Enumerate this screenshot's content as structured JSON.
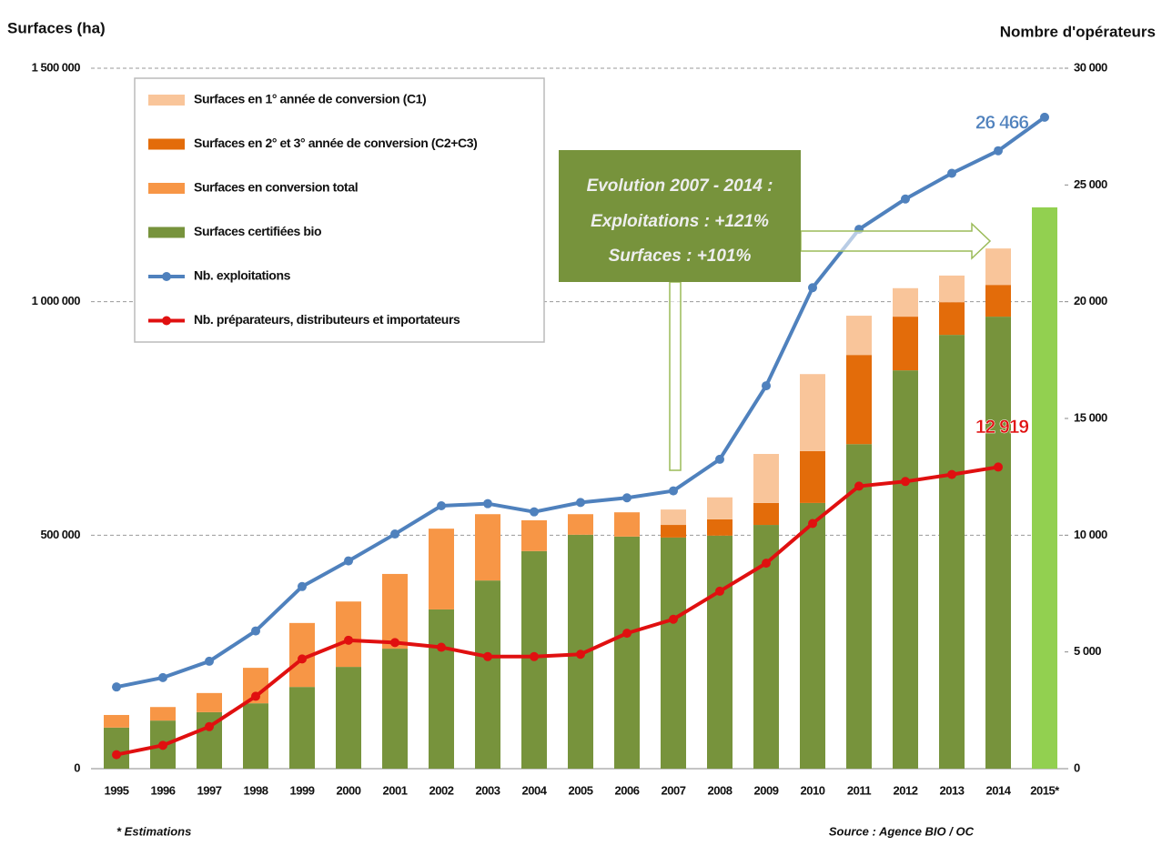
{
  "chart_data": {
    "type": "bar",
    "y_axis_label": "Surfaces (ha)",
    "y2_axis_label": "Nombre d'opérateurs",
    "annotation": [
      "Evolution 2007 - 2014 :",
      "Exploitations : +121%",
      "Surfaces : +101%"
    ],
    "footnote": "* Estimations",
    "source": "Source : Agence BIO / OC",
    "categories": [
      "1995",
      "1996",
      "1997",
      "1998",
      "1999",
      "2000",
      "2001",
      "2002",
      "2003",
      "2004",
      "2005",
      "2006",
      "2007",
      "2008",
      "2009",
      "2010",
      "2011",
      "2012",
      "2013",
      "2014",
      "2015*"
    ],
    "ylim": [
      0,
      1500000
    ],
    "yticks": [
      {
        "value": 0,
        "label": "0"
      },
      {
        "value": 500000,
        "label": "500 000"
      },
      {
        "value": 1000000,
        "label": "1 000 000"
      },
      {
        "value": 1500000,
        "label": "1 500 000"
      }
    ],
    "y2lim": [
      0,
      30000
    ],
    "y2ticks": [
      {
        "value": 0,
        "label": "0"
      },
      {
        "value": 5000,
        "label": "5 000"
      },
      {
        "value": 10000,
        "label": "10 000"
      },
      {
        "value": 15000,
        "label": "15 000"
      },
      {
        "value": 20000,
        "label": "20 000"
      },
      {
        "value": 25000,
        "label": "25 000"
      },
      {
        "value": 30000,
        "label": "30 000"
      }
    ],
    "grid": true,
    "series": [
      {
        "name": "Surfaces en 1° année de conversion (C1)",
        "color": "#f9c59a",
        "values": [
          null,
          null,
          null,
          null,
          null,
          null,
          null,
          null,
          null,
          null,
          null,
          null,
          33000,
          47000,
          105000,
          165000,
          84000,
          61000,
          57000,
          78000,
          null
        ]
      },
      {
        "name": "Surfaces en 2° et 3° année de conversion (C2+C3)",
        "color": "#e36c0a",
        "values": [
          null,
          null,
          null,
          null,
          null,
          null,
          null,
          null,
          null,
          null,
          null,
          null,
          27000,
          35000,
          47000,
          111000,
          191000,
          115000,
          70000,
          68000,
          null
        ]
      },
      {
        "name": "Surfaces en conversion total",
        "color": "#f79646",
        "values": [
          27000,
          29000,
          41000,
          76000,
          137000,
          140000,
          160000,
          173000,
          142000,
          66000,
          44000,
          52000,
          null,
          null,
          null,
          null,
          null,
          null,
          null,
          null,
          null
        ]
      },
      {
        "name": "Surfaces certifiées bio",
        "color": "#77933c",
        "last_color": "#92d050",
        "values": [
          88000,
          103000,
          121000,
          140000,
          175000,
          218000,
          257000,
          341000,
          403000,
          466000,
          501000,
          497000,
          495000,
          499000,
          522000,
          569000,
          695000,
          853000,
          929000,
          968000,
          1202000
        ]
      },
      {
        "name": "Nb. exploitations",
        "color": "#4f81bd",
        "type": "line",
        "axis": "y2",
        "values": [
          3500,
          3900,
          4600,
          5900,
          7800,
          8900,
          10050,
          11260,
          11350,
          11000,
          11400,
          11600,
          11900,
          13250,
          16400,
          20600,
          23100,
          24400,
          25500,
          26466,
          27900
        ],
        "value_labels": [
          null,
          null,
          null,
          null,
          null,
          null,
          null,
          null,
          null,
          null,
          null,
          null,
          null,
          null,
          null,
          null,
          null,
          null,
          null,
          "26 466",
          null
        ]
      },
      {
        "name": "Nb. préparateurs, distributeurs et importateurs",
        "color": "#e01010",
        "type": "line",
        "axis": "y2",
        "values": [
          600,
          1000,
          1800,
          3100,
          4700,
          5500,
          5400,
          5200,
          4800,
          4800,
          4900,
          5800,
          6400,
          7600,
          8800,
          10500,
          12100,
          12300,
          12600,
          12919,
          null
        ],
        "value_labels": [
          null,
          null,
          null,
          null,
          null,
          null,
          null,
          null,
          null,
          null,
          null,
          null,
          null,
          null,
          null,
          null,
          null,
          null,
          null,
          "12 919",
          null
        ]
      }
    ]
  }
}
